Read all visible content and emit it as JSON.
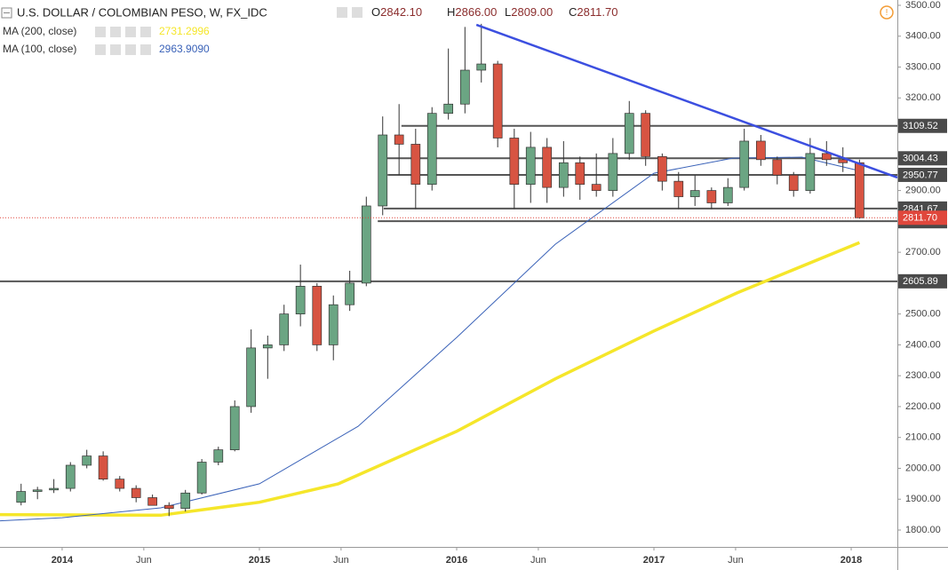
{
  "chart_data": {
    "type": "candlestick",
    "title": "U.S. DOLLAR / COLOMBIAN PESO, W, FX_IDC",
    "ohlc": [
      {
        "label": "O",
        "value": "2842.10"
      },
      {
        "label": "H",
        "value": "2866.00"
      },
      {
        "label": "L",
        "value": "2809.00"
      },
      {
        "label": "C",
        "value": "2811.70"
      }
    ],
    "up_color": "#6ba583",
    "down_color": "#d75442",
    "xlim": [
      2013.685,
      2018.234
    ],
    "xticks": [
      2014,
      {
        "value": 2014.414,
        "label": "Jun"
      },
      2015,
      {
        "value": 2015.414,
        "label": "Jun"
      },
      2016,
      {
        "value": 2016.414,
        "label": "Jun"
      },
      2017,
      {
        "value": 2017.414,
        "label": "Jun"
      },
      2018
    ],
    "ylim": [
      1800,
      3500
    ],
    "yticks": [
      {
        "value": 1800,
        "label": "1800.00"
      },
      {
        "value": 1900,
        "label": "1900.00"
      },
      {
        "value": 2000,
        "label": "2000.00"
      },
      {
        "value": 2100,
        "label": "2100.00"
      },
      {
        "value": 2200,
        "label": "2200.00"
      },
      {
        "value": 2300,
        "label": "2300.00"
      },
      {
        "value": 2400,
        "label": "2400.00"
      },
      {
        "value": 2500,
        "label": "2500.00"
      },
      {
        "value": 2600,
        "label": "2600.00"
      },
      {
        "value": 2700,
        "label": "2700.00"
      },
      {
        "value": 2800,
        "label": "2800.00"
      },
      {
        "value": 2900,
        "label": "2900.00"
      },
      {
        "value": 3000,
        "label": "3000.00"
      },
      {
        "value": 3100,
        "label": "3100.00"
      },
      {
        "value": 3200,
        "label": "3200.00"
      },
      {
        "value": 3300,
        "label": "3300.00"
      },
      {
        "value": 3400,
        "label": "3400.00"
      },
      {
        "value": 3500,
        "label": "3500.00"
      }
    ],
    "grid": false,
    "candles": {
      "x": [
        2013.792,
        2013.875,
        2013.958,
        2014.042,
        2014.125,
        2014.208,
        2014.292,
        2014.375,
        2014.458,
        2014.542,
        2014.625,
        2014.708,
        2014.792,
        2014.875,
        2014.958,
        2015.042,
        2015.125,
        2015.208,
        2015.292,
        2015.375,
        2015.458,
        2015.542,
        2015.625,
        2015.708,
        2015.792,
        2015.875,
        2015.958,
        2016.042,
        2016.125,
        2016.208,
        2016.292,
        2016.375,
        2016.458,
        2016.542,
        2016.625,
        2016.708,
        2016.792,
        2016.875,
        2016.958,
        2017.042,
        2017.125,
        2017.208,
        2017.292,
        2017.375,
        2017.458,
        2017.542,
        2017.625,
        2017.708,
        2017.792,
        2017.875,
        2017.958,
        2018.042
      ],
      "open": [
        1890,
        1925,
        1930,
        1935,
        2010,
        2040,
        1965,
        1935,
        1905,
        1880,
        1870,
        1920,
        2020,
        2060,
        2200,
        2390,
        2400,
        2500,
        2590,
        2400,
        2530,
        2600,
        2850,
        3080,
        3050,
        2920,
        3150,
        3180,
        3290,
        3310,
        3070,
        2920,
        3040,
        2910,
        2990,
        2920,
        2900,
        3020,
        3150,
        3010,
        2930,
        2880,
        2900,
        2860,
        2910,
        3060,
        3000,
        2950,
        2900,
        3020,
        3000,
        2990
      ],
      "high": [
        1950,
        1940,
        1965,
        2020,
        2060,
        2055,
        1975,
        1945,
        1915,
        1890,
        1930,
        2030,
        2070,
        2220,
        2450,
        2430,
        2530,
        2660,
        2600,
        2560,
        2640,
        2880,
        3140,
        3180,
        3100,
        3170,
        3360,
        3430,
        3440,
        3320,
        3100,
        3090,
        3070,
        3060,
        3010,
        3020,
        3070,
        3190,
        3160,
        3020,
        2960,
        2950,
        2910,
        2940,
        3100,
        3080,
        3010,
        2960,
        3070,
        3060,
        3040,
        3000
      ],
      "low": [
        1880,
        1900,
        1920,
        1925,
        2000,
        1960,
        1925,
        1890,
        1880,
        1845,
        1860,
        1915,
        2010,
        2055,
        2180,
        2290,
        2380,
        2460,
        2380,
        2350,
        2510,
        2590,
        2820,
        2950,
        2840,
        2900,
        3130,
        3150,
        3250,
        3040,
        2840,
        2860,
        2860,
        2880,
        2870,
        2880,
        2880,
        3000,
        2980,
        2900,
        2840,
        2850,
        2840,
        2850,
        2900,
        2980,
        2920,
        2880,
        2890,
        2980,
        2960,
        2809
      ],
      "close": [
        1925,
        1930,
        1935,
        2010,
        2040,
        1965,
        1935,
        1905,
        1880,
        1870,
        1920,
        2020,
        2060,
        2200,
        2390,
        2400,
        2500,
        2590,
        2400,
        2530,
        2600,
        2850,
        3080,
        3050,
        2920,
        3150,
        3180,
        3290,
        3310,
        3070,
        2920,
        3040,
        2910,
        2990,
        2920,
        2900,
        3020,
        3150,
        3010,
        2930,
        2880,
        2900,
        2860,
        2910,
        3060,
        3000,
        2950,
        2900,
        3020,
        3000,
        2990,
        2811.7
      ]
    },
    "series": [
      {
        "name": "MA (200, close)",
        "last": "2731.2996",
        "color": "#f5e62a",
        "x": [
          2013.685,
          2014.5,
          2015.0,
          2015.4,
          2016.0,
          2016.5,
          2017.0,
          2017.42,
          2018.042
        ],
        "values": [
          1850,
          1848,
          1890,
          1950,
          2120,
          2290,
          2445,
          2568,
          2731.3
        ]
      },
      {
        "name": "MA (100, close)",
        "last": "2963.9090",
        "color": "#3a62b8",
        "x": [
          2013.685,
          2014.0,
          2014.5,
          2015.0,
          2015.5,
          2016.0,
          2016.5,
          2017.0,
          2017.4,
          2017.75,
          2018.042
        ],
        "values": [
          1830,
          1840,
          1872,
          1950,
          2136,
          2424,
          2726,
          2956,
          3005,
          3008,
          2963.9
        ]
      }
    ],
    "levels": [
      {
        "value": 3109.52,
        "x_start": 2015.72
      },
      {
        "value": 3004.43,
        "x_start": 2015.63
      },
      {
        "value": 2950.77,
        "x_start": 2015.65
      },
      {
        "value": 2841.67,
        "x_start": 2015.63
      },
      {
        "value": 2800.48,
        "x_start": 2015.6
      },
      {
        "value": 2605.89,
        "x_start": 2013.685
      }
    ],
    "level_color": "#555555",
    "last_price": {
      "value": 2811.7,
      "label": "2811.70",
      "color": "#e0473c"
    },
    "trendline": {
      "x": [
        2016.1,
        2018.234
      ],
      "values": [
        3437,
        2942
      ],
      "color": "#3c4fe0"
    }
  }
}
